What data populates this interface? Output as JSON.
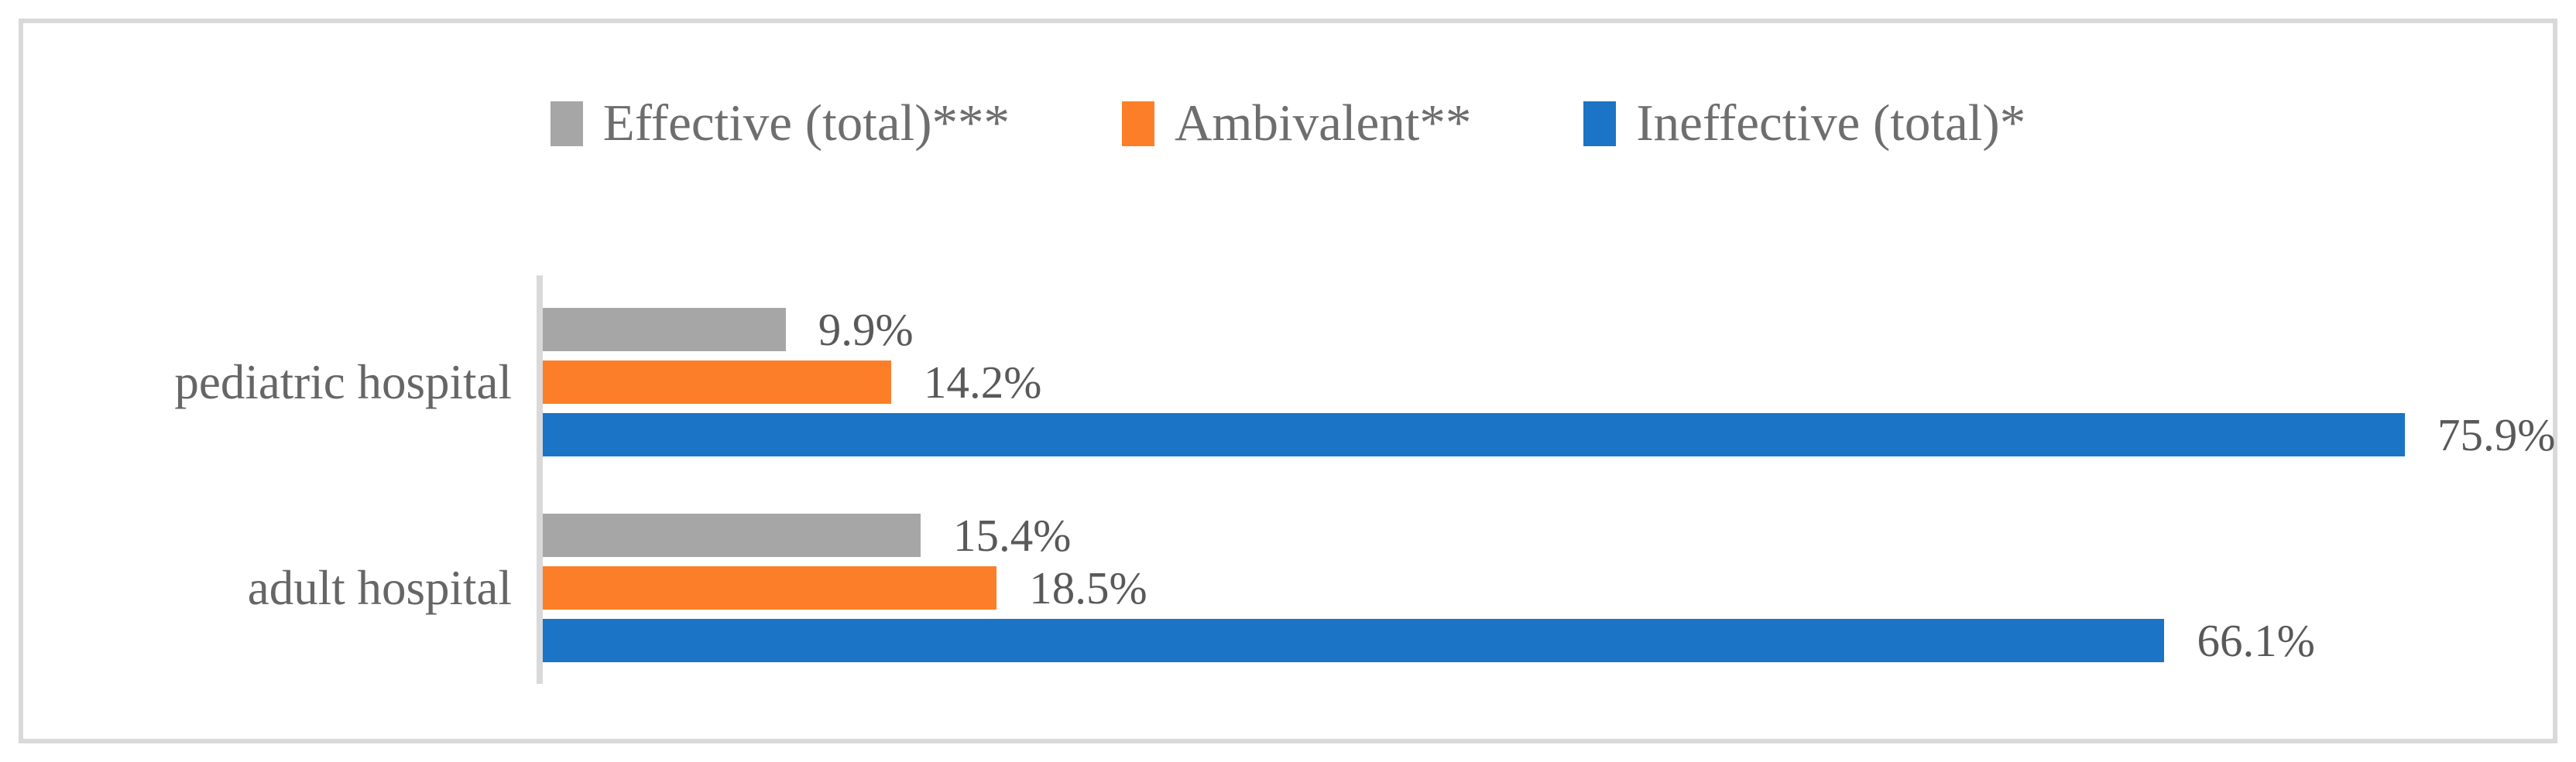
{
  "chart_data": {
    "type": "bar",
    "orientation": "horizontal",
    "title": "",
    "xlabel": "",
    "ylabel": "",
    "grid": false,
    "legend_position": "top",
    "xlim": [
      0,
      83
    ],
    "categories": [
      "pediatric hospital",
      "adult hospital"
    ],
    "series": [
      {
        "name": "Effective (total)***",
        "color": "#A6A6A6",
        "values": [
          9.9,
          15.4
        ]
      },
      {
        "name": "Ambivalent**",
        "color": "#FD7E28",
        "values": [
          14.2,
          18.5
        ]
      },
      {
        "name": "Ineffective (total)*",
        "color": "#1B74C5",
        "values": [
          75.9,
          66.1
        ]
      }
    ],
    "data_labels": [
      [
        "9.9%",
        "14.2%",
        "75.9%"
      ],
      [
        "15.4%",
        "18.5%",
        "66.1%"
      ]
    ],
    "value_format": "percent"
  },
  "style": {
    "frame_border_color": "#D9D9D9",
    "axis_line_color": "#D9D9D9",
    "legend_text_color": "#6E6E6E",
    "label_text_color": "#595959"
  }
}
